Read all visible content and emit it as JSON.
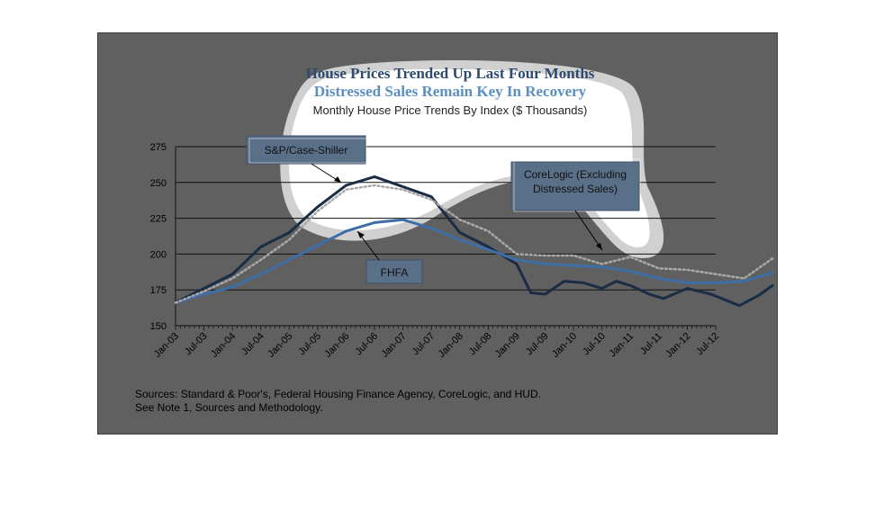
{
  "chart_data": {
    "type": "line",
    "title": "House Prices Trended Up Last Four Months",
    "subtitle": "Distressed Sales Remain Key In Recovery",
    "chart_label": "Monthly House Price Trends By Index ($ Thousands)",
    "xlabel": "",
    "ylabel": "",
    "ylim": [
      150,
      275
    ],
    "y_ticks": [
      150,
      175,
      200,
      225,
      250,
      275
    ],
    "x_ticks": [
      "Jan-03",
      "Jul-03",
      "Jan-04",
      "Jul-04",
      "Jan-05",
      "Jul-05",
      "Jan-06",
      "Jul-06",
      "Jan-07",
      "Jul-07",
      "Jan-08",
      "Jul-08",
      "Jan-09",
      "Jul-09",
      "Jan-10",
      "Jul-10",
      "Jan-11",
      "Jul-11",
      "Jan-12",
      "Jul-12"
    ],
    "grid": true,
    "x_range": [
      "Jan-03",
      "Jul-12"
    ],
    "series": [
      {
        "name": "S&P/Case-Shiller",
        "color": "#1b2d44",
        "style": "solid",
        "points": [
          [
            0,
            166
          ],
          [
            6,
            176
          ],
          [
            12,
            186
          ],
          [
            18,
            205
          ],
          [
            24,
            215
          ],
          [
            30,
            233
          ],
          [
            36,
            248
          ],
          [
            42,
            254
          ],
          [
            48,
            247
          ],
          [
            54,
            240
          ],
          [
            60,
            215
          ],
          [
            66,
            205
          ],
          [
            72,
            193
          ],
          [
            75,
            173
          ],
          [
            78,
            172
          ],
          [
            82,
            181
          ],
          [
            86,
            180
          ],
          [
            88,
            178
          ],
          [
            90,
            176
          ],
          [
            93,
            181
          ],
          [
            96,
            178
          ],
          [
            100,
            172
          ],
          [
            103,
            169
          ],
          [
            108,
            176
          ],
          [
            113,
            172
          ],
          [
            116,
            168
          ],
          [
            119,
            164
          ],
          [
            123,
            171
          ],
          [
            126,
            178
          ]
        ]
      },
      {
        "name": "FHFA",
        "color": "#3e6ea6",
        "style": "solid",
        "points": [
          [
            0,
            166
          ],
          [
            6,
            172
          ],
          [
            12,
            177
          ],
          [
            18,
            186
          ],
          [
            24,
            196
          ],
          [
            30,
            206
          ],
          [
            36,
            216
          ],
          [
            42,
            222
          ],
          [
            48,
            224
          ],
          [
            54,
            218
          ],
          [
            60,
            210
          ],
          [
            66,
            203
          ],
          [
            72,
            196
          ],
          [
            78,
            193
          ],
          [
            84,
            192
          ],
          [
            90,
            191
          ],
          [
            96,
            188
          ],
          [
            102,
            183
          ],
          [
            108,
            180
          ],
          [
            114,
            180
          ],
          [
            120,
            181
          ],
          [
            126,
            187
          ]
        ]
      },
      {
        "name": "CoreLogic (Excluding Distressed Sales)",
        "color": "#a9a9a9",
        "style": "dotted",
        "points": [
          [
            0,
            166
          ],
          [
            6,
            174
          ],
          [
            12,
            183
          ],
          [
            18,
            196
          ],
          [
            24,
            210
          ],
          [
            30,
            230
          ],
          [
            36,
            245
          ],
          [
            42,
            248
          ],
          [
            48,
            245
          ],
          [
            54,
            238
          ],
          [
            60,
            224
          ],
          [
            66,
            216
          ],
          [
            72,
            200
          ],
          [
            78,
            199
          ],
          [
            84,
            199
          ],
          [
            90,
            193
          ],
          [
            96,
            198
          ],
          [
            102,
            190
          ],
          [
            108,
            189
          ],
          [
            114,
            186
          ],
          [
            120,
            183
          ],
          [
            126,
            197
          ]
        ]
      }
    ],
    "callouts": [
      {
        "label": "S&P/Case-Shiller"
      },
      {
        "label": "FHFA"
      },
      {
        "label_line1": "CoreLogic (Excluding",
        "label_line2": "Distressed Sales)"
      }
    ],
    "annotations": {
      "source_line1": "Sources:  Standard & Poor's, Federal Housing Finance Agency, CoreLogic, and HUD.",
      "source_line2": "See Note 1, Sources and Methodology."
    }
  },
  "colors": {
    "frame": "#606060",
    "gridline": "#111111",
    "highlight": "#ffffff"
  }
}
